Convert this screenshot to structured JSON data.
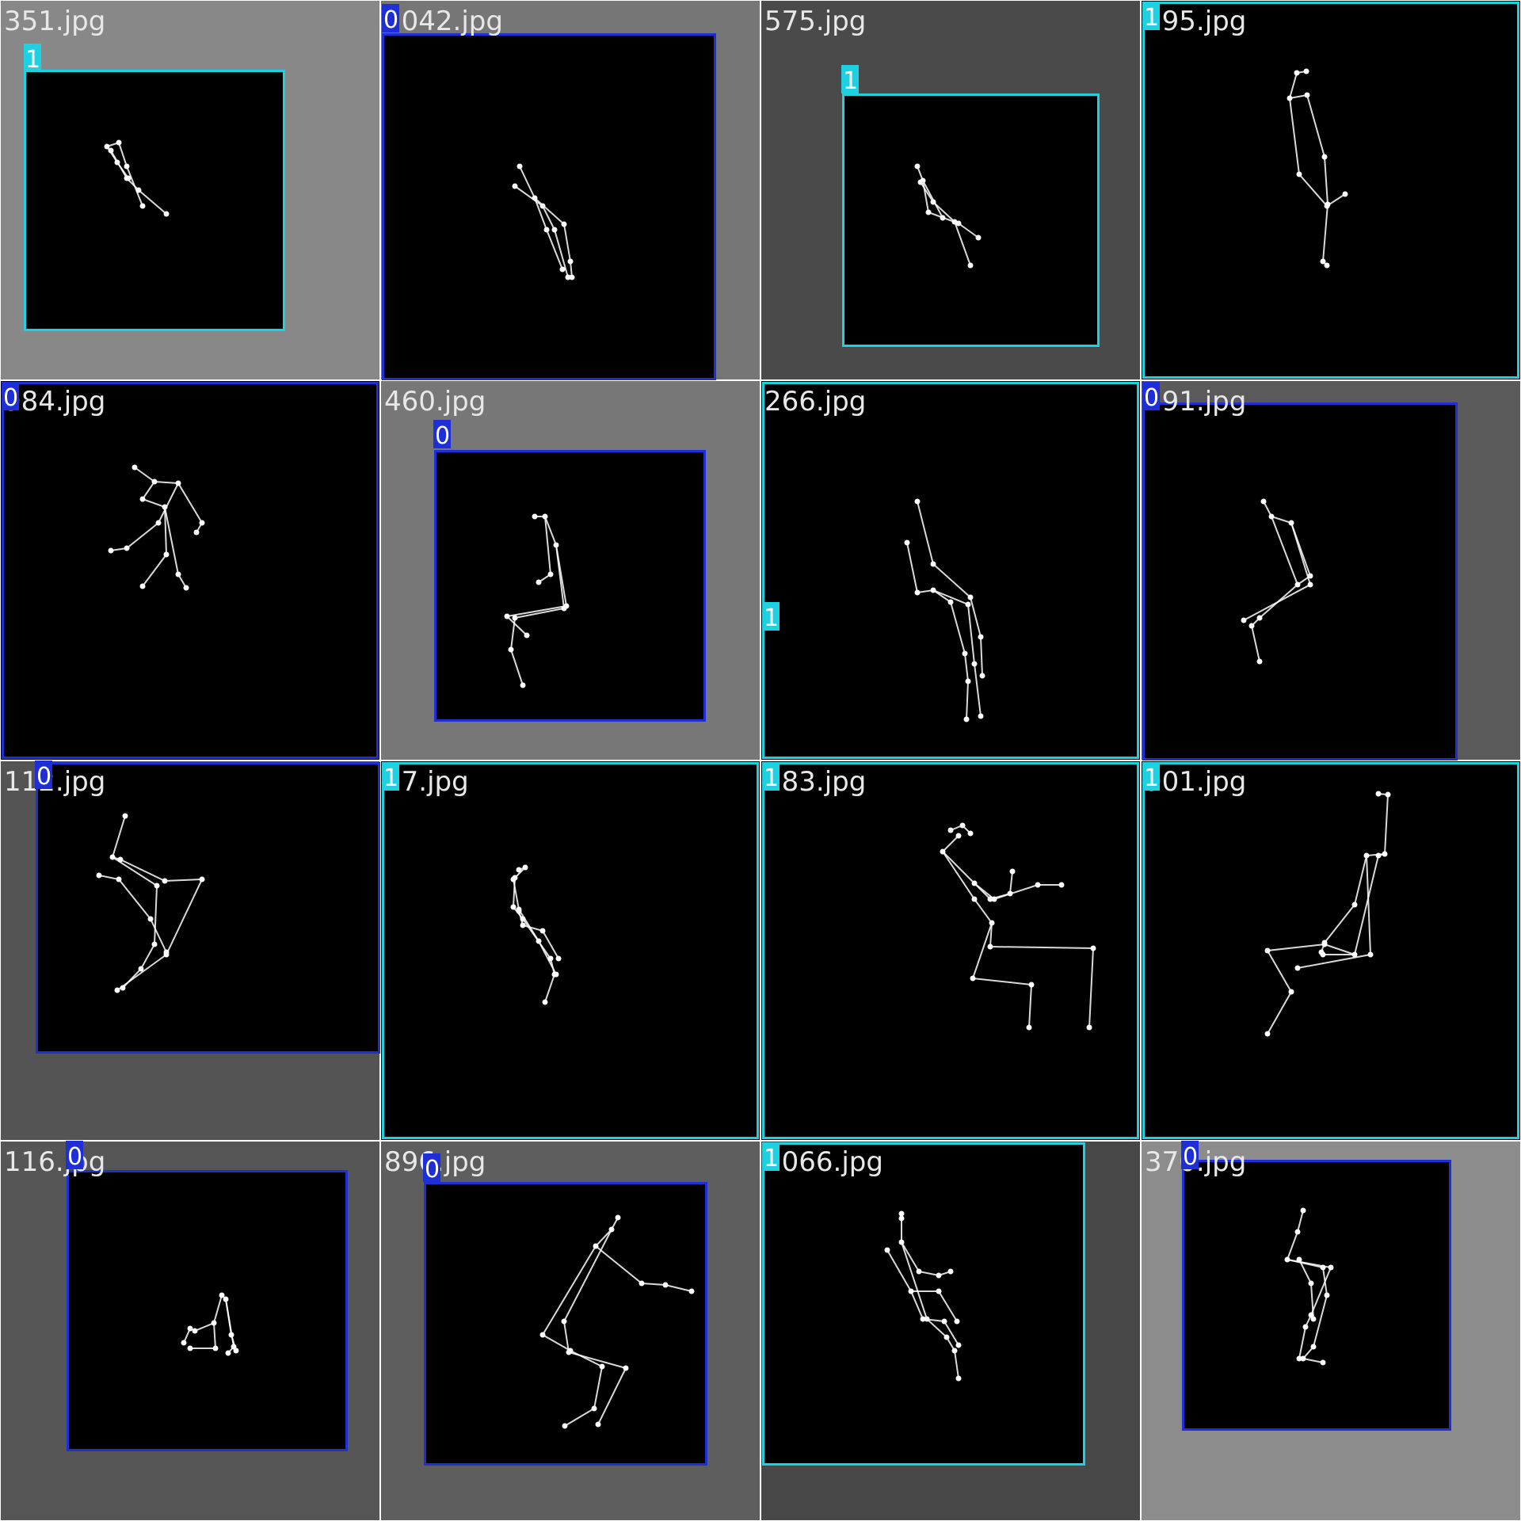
{
  "colors": {
    "class_0": "#1f2fd8",
    "class_1": "#1fd0e0",
    "skeleton": "#ffffff",
    "cell_backgrounds": [
      "#888888",
      "#767676",
      "#4a4a4a",
      "#000000",
      "#000000",
      "#777777",
      "#000000",
      "#5a5a5a",
      "#545454",
      "#000000",
      "#000000",
      "#000000",
      "#565656",
      "#5e5e5e",
      "#484848",
      "#8c8c8c"
    ]
  },
  "tiles": [
    {
      "filename": "351.jpg",
      "class": "1"
    },
    {
      "filename": "1042.jpg",
      "class": "0"
    },
    {
      "filename": "575.jpg",
      "class": "1"
    },
    {
      "filename": "195.jpg",
      "class": "1"
    },
    {
      "filename": "984.jpg",
      "class": "0"
    },
    {
      "filename": "460.jpg",
      "class": "0"
    },
    {
      "filename": "266.jpg",
      "class": "1"
    },
    {
      "filename": "191.jpg",
      "class": "0"
    },
    {
      "filename": "112.jpg",
      "class": "0"
    },
    {
      "filename": "17.jpg",
      "class": "1"
    },
    {
      "filename": "783.jpg",
      "class": "1"
    },
    {
      "filename": "901.jpg",
      "class": "1"
    },
    {
      "filename": "116.jpg",
      "class": "0"
    },
    {
      "filename": "896.jpg",
      "class": "0"
    },
    {
      "filename": "1066.jpg",
      "class": "1"
    },
    {
      "filename": "370.jpg",
      "class": "0"
    }
  ]
}
